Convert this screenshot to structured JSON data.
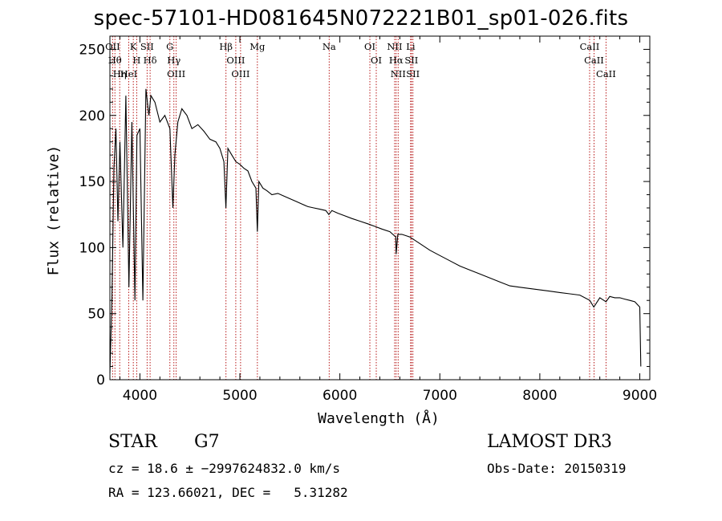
{
  "chart_data": {
    "type": "line",
    "title": "spec-57101-HD081645N072221B01_sp01-026.fits",
    "xlabel": "Wavelength (Å)",
    "ylabel": "Flux (relative)",
    "xlim": [
      3700,
      9100
    ],
    "ylim": [
      0,
      260
    ],
    "xticks": [
      4000,
      5000,
      6000,
      7000,
      8000,
      9000
    ],
    "yticks": [
      0,
      50,
      100,
      150,
      200,
      250
    ],
    "grid": false,
    "series": [
      {
        "name": "Flux",
        "x": [
          3700,
          3720,
          3740,
          3760,
          3780,
          3800,
          3830,
          3860,
          3890,
          3920,
          3950,
          3970,
          4000,
          4030,
          4060,
          4090,
          4110,
          4150,
          4200,
          4250,
          4300,
          4330,
          4350,
          4380,
          4420,
          4470,
          4520,
          4580,
          4640,
          4700,
          4760,
          4800,
          4840,
          4860,
          4880,
          4920,
          4960,
          5000,
          5040,
          5080,
          5120,
          5160,
          5175,
          5190,
          5230,
          5270,
          5320,
          5380,
          5440,
          5500,
          5560,
          5620,
          5680,
          5740,
          5800,
          5860,
          5890,
          5920,
          5980,
          6050,
          6120,
          6200,
          6280,
          6350,
          6420,
          6500,
          6560,
          6563,
          6580,
          6620,
          6700,
          6800,
          6900,
          7000,
          7100,
          7200,
          7300,
          7400,
          7500,
          7600,
          7700,
          7800,
          7900,
          8000,
          8100,
          8200,
          8300,
          8400,
          8500,
          8540,
          8600,
          8662,
          8700,
          8750,
          8800,
          8850,
          8900,
          8950,
          9000,
          9010
        ],
        "values": [
          5,
          60,
          160,
          190,
          120,
          180,
          100,
          215,
          70,
          195,
          60,
          185,
          190,
          60,
          220,
          200,
          215,
          210,
          195,
          200,
          190,
          130,
          170,
          195,
          205,
          200,
          190,
          193,
          188,
          182,
          180,
          175,
          165,
          130,
          175,
          170,
          165,
          163,
          160,
          158,
          150,
          145,
          112,
          150,
          145,
          143,
          140,
          141,
          139,
          137,
          135,
          133,
          131,
          130,
          129,
          128,
          125,
          128,
          126,
          124,
          122,
          120,
          118,
          116,
          114,
          112,
          108,
          95,
          110,
          110,
          108,
          103,
          98,
          94,
          90,
          86,
          83,
          80,
          77,
          74,
          71,
          70,
          69,
          68,
          67,
          66,
          65,
          64,
          60,
          55,
          62,
          59,
          63,
          62,
          62,
          61,
          60,
          59,
          55,
          10
        ]
      }
    ],
    "line_markers": [
      {
        "wavelength": 3727,
        "label": "OII"
      },
      {
        "wavelength": 3750,
        "label": "Hθ"
      },
      {
        "wavelength": 3798,
        "label": "Hη"
      },
      {
        "wavelength": 3888,
        "label": "HeI"
      },
      {
        "wavelength": 3934,
        "label": "K"
      },
      {
        "wavelength": 3968,
        "label": "H"
      },
      {
        "wavelength": 4072,
        "label": "SII"
      },
      {
        "wavelength": 4102,
        "label": "Hδ"
      },
      {
        "wavelength": 4300,
        "label": "G"
      },
      {
        "wavelength": 4340,
        "label": "Hγ"
      },
      {
        "wavelength": 4363,
        "label": "OIII"
      },
      {
        "wavelength": 4861,
        "label": "Hβ"
      },
      {
        "wavelength": 4959,
        "label": "OIII"
      },
      {
        "wavelength": 5007,
        "label": "OIII"
      },
      {
        "wavelength": 5175,
        "label": "Mg"
      },
      {
        "wavelength": 5893,
        "label": "Na"
      },
      {
        "wavelength": 6300,
        "label": "OI"
      },
      {
        "wavelength": 6364,
        "label": "OI"
      },
      {
        "wavelength": 6548,
        "label": "NII"
      },
      {
        "wavelength": 6563,
        "label": "Hα"
      },
      {
        "wavelength": 6583,
        "label": "NII"
      },
      {
        "wavelength": 6708,
        "label": "Li"
      },
      {
        "wavelength": 6716,
        "label": "SII"
      },
      {
        "wavelength": 6731,
        "label": "SII"
      },
      {
        "wavelength": 8498,
        "label": "CaII"
      },
      {
        "wavelength": 8542,
        "label": "CaII"
      },
      {
        "wavelength": 8662,
        "label": "CaII"
      }
    ]
  },
  "info": {
    "object_class": "STAR",
    "subclass": "G7",
    "survey": "LAMOST DR3",
    "cz_line": "cz = 18.6 ± −2997624832.0 km/s",
    "obs_date_line": "Obs-Date: 20150319",
    "coords_line": "RA = 123.66021, DEC =   5.31282"
  },
  "colors": {
    "spectrum": "#000000",
    "marker_line": "#b00000",
    "axes": "#000000"
  }
}
